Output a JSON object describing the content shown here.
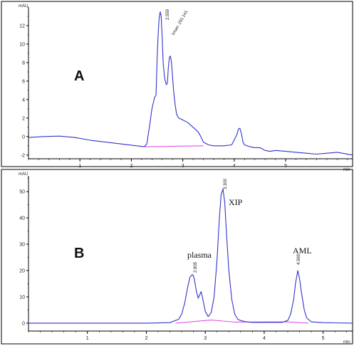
{
  "panels": {
    "A": {
      "letter": "A",
      "y_unit": "mAU",
      "x_unit": "min",
      "peak_rt": "2.559",
      "lambda": "λmax: 291.141"
    },
    "B": {
      "letter": "B",
      "y_unit": "mAU",
      "x_unit": "min",
      "plasma_label": "plasma",
      "plasma_rt": "2.805",
      "xip_label": "XIP",
      "xip_rt": "3.300",
      "aml_label": "AML",
      "aml_rt": "4.569"
    }
  },
  "colors": {
    "trace": "#3333cc",
    "baseline": "#e040e0",
    "axis": "#000000"
  },
  "chart_data": [
    {
      "type": "line",
      "title": "",
      "xlabel": "min",
      "ylabel": "mAU",
      "xlim": [
        0,
        6.3
      ],
      "ylim": [
        -2.4,
        14
      ],
      "x_ticks": [
        1,
        2,
        3,
        4,
        5
      ],
      "y_ticks": [
        -2,
        0,
        2,
        4,
        6,
        8,
        10,
        12
      ],
      "series": [
        {
          "x": [
            0,
            0.3,
            0.6,
            0.9,
            1.2,
            1.5,
            1.8,
            2.1,
            2.25,
            2.3,
            2.35,
            2.4,
            2.45,
            2.48,
            2.5,
            2.52,
            2.54,
            2.56,
            2.58,
            2.6,
            2.62,
            2.65,
            2.68,
            2.7,
            2.72,
            2.74,
            2.76,
            2.78,
            2.8,
            2.82,
            2.85,
            2.88,
            2.92,
            3.0,
            3.1,
            3.2,
            3.3,
            3.35,
            3.4,
            3.5,
            3.6,
            3.8,
            3.95,
            4.05,
            4.08,
            4.11,
            4.14,
            4.17,
            4.2,
            4.3,
            4.4,
            4.5,
            4.6,
            4.7,
            4.8,
            5.0,
            5.2,
            5.4,
            5.6,
            5.8,
            6.0,
            6.3
          ],
          "y": [
            -0.1,
            0.0,
            0.05,
            -0.1,
            -0.4,
            -0.6,
            -0.8,
            -1.0,
            -1.1,
            -0.8,
            1.0,
            3.0,
            4.2,
            4.5,
            8.5,
            11.0,
            12.8,
            13.5,
            13.0,
            10.5,
            7.8,
            6.2,
            5.6,
            5.8,
            7.5,
            8.6,
            8.7,
            8.0,
            6.5,
            5.0,
            3.5,
            2.4,
            2.0,
            1.8,
            1.5,
            1.0,
            0.5,
            0.0,
            -0.6,
            -0.9,
            -1.0,
            -1.0,
            -0.9,
            0.2,
            0.8,
            0.9,
            0.3,
            -0.6,
            -0.9,
            -1.1,
            -1.2,
            -1.2,
            -1.5,
            -1.6,
            -1.5,
            -1.6,
            -1.7,
            -1.8,
            -1.9,
            -1.8,
            -1.7,
            -2.0
          ]
        }
      ]
    },
    {
      "type": "line",
      "title": "",
      "xlabel": "min",
      "ylabel": "mAU",
      "xlim": [
        0,
        5.5
      ],
      "ylim": [
        -3,
        56
      ],
      "x_ticks": [
        1,
        2,
        3,
        4,
        5
      ],
      "y_ticks": [
        0,
        10,
        20,
        30,
        40,
        50
      ],
      "series": [
        {
          "x": [
            0,
            0.5,
            1,
            1.5,
            2,
            2.4,
            2.55,
            2.6,
            2.65,
            2.7,
            2.74,
            2.78,
            2.8,
            2.82,
            2.85,
            2.88,
            2.9,
            2.93,
            2.96,
            3.0,
            3.05,
            3.1,
            3.15,
            3.2,
            3.24,
            3.27,
            3.3,
            3.33,
            3.36,
            3.4,
            3.45,
            3.5,
            3.55,
            3.6,
            3.7,
            3.8,
            3.9,
            4.0,
            4.1,
            4.2,
            4.3,
            4.4,
            4.45,
            4.5,
            4.53,
            4.57,
            4.6,
            4.63,
            4.68,
            4.72,
            4.8,
            5.0,
            5.2,
            5.5
          ],
          "y": [
            0,
            0,
            0,
            0,
            0,
            0.2,
            1.5,
            3.5,
            7.5,
            13.5,
            17.5,
            18.5,
            18.0,
            16.0,
            12.0,
            9.5,
            10.5,
            12.0,
            9.0,
            4.5,
            2.5,
            4.0,
            10.0,
            24.0,
            40.0,
            49.0,
            51.0,
            46.0,
            34.0,
            20.0,
            9.0,
            3.5,
            1.5,
            1.0,
            0.5,
            0.3,
            0.3,
            0.3,
            0.3,
            0.3,
            0.3,
            1.0,
            3.5,
            9.0,
            15.0,
            20.0,
            17.0,
            12.0,
            5.0,
            2.0,
            0.5,
            0.2,
            0.1,
            0.0
          ]
        }
      ]
    }
  ]
}
